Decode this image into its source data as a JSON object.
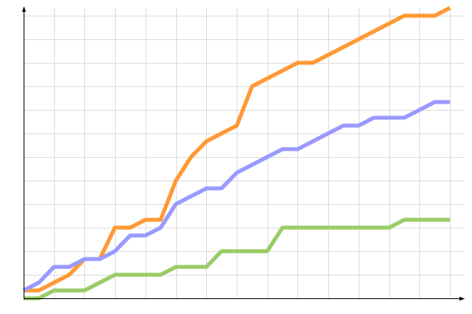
{
  "chart_data": {
    "type": "line",
    "title": "",
    "xlabel": "",
    "ylabel": "",
    "x": [
      0,
      1,
      2,
      3,
      4,
      5,
      6,
      7,
      8,
      9,
      10,
      11,
      12,
      13,
      14,
      15,
      16,
      17,
      18,
      19,
      20,
      21,
      22,
      23,
      24,
      25,
      26,
      27,
      28
    ],
    "xlim": [
      0,
      28
    ],
    "ylim": [
      0,
      37
    ],
    "grid": true,
    "legend": "none",
    "series": [
      {
        "color": "#ff9933",
        "values": [
          1,
          1,
          2,
          3,
          5,
          5,
          9,
          9,
          10,
          10,
          15,
          18,
          20,
          21,
          22,
          27,
          28,
          29,
          30,
          30,
          31,
          32,
          33,
          34,
          35,
          36,
          36,
          36,
          37
        ]
      },
      {
        "color": "#9999ff",
        "values": [
          1,
          2,
          4,
          4,
          5,
          5,
          6,
          8,
          8,
          9,
          12,
          13,
          14,
          14,
          16,
          17,
          18,
          19,
          19,
          20,
          21,
          22,
          22,
          23,
          23,
          23,
          24,
          25,
          25
        ]
      },
      {
        "color": "#99cc66",
        "values": [
          0,
          0,
          1,
          1,
          1,
          2,
          3,
          3,
          3,
          3,
          4,
          4,
          4,
          6,
          6,
          6,
          6,
          9,
          9,
          9,
          9,
          9,
          9,
          9,
          9,
          10,
          10,
          10,
          10
        ]
      }
    ]
  }
}
